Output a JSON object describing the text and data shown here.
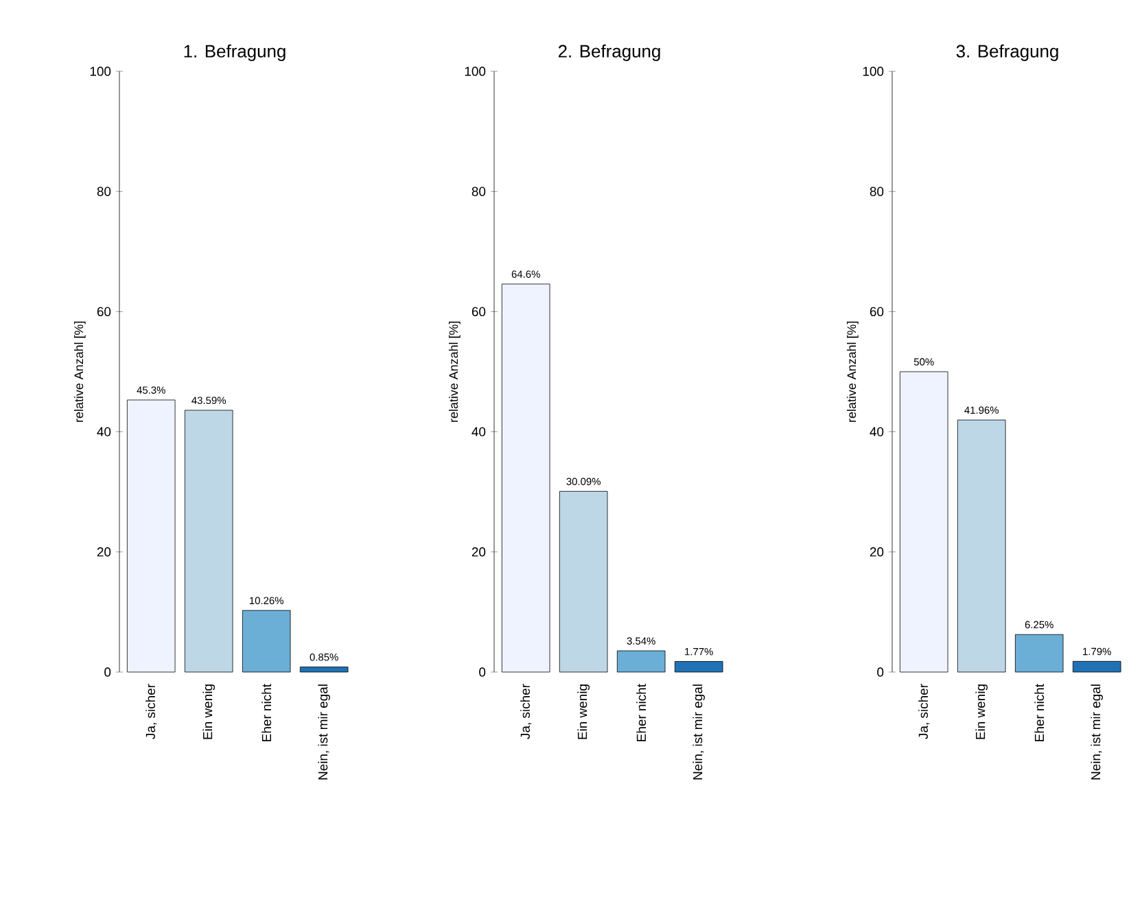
{
  "chart_data": [
    {
      "type": "bar",
      "title": "1. Befragung",
      "ylabel": "relative Anzahl [%]",
      "categories": [
        "Ja, sicher",
        "Ein wenig",
        "Eher nicht",
        "Nein, ist mir egal"
      ],
      "values": [
        45.3,
        43.59,
        10.26,
        0.85
      ],
      "colors": [
        "#eff3ff",
        "#bdd7e7",
        "#6baed6",
        "#2171b5"
      ],
      "value_labels": [
        "45.3%",
        "43.59%",
        "10.26%",
        "0.85%"
      ],
      "ylim": [
        0,
        100
      ],
      "yticks": [
        0,
        20,
        40,
        60,
        80,
        100
      ]
    },
    {
      "type": "bar",
      "title": "2. Befragung",
      "ylabel": "relative Anzahl [%]",
      "categories": [
        "Ja, sicher",
        "Ein wenig",
        "Eher nicht",
        "Nein, ist mir egal"
      ],
      "values": [
        64.6,
        30.09,
        3.54,
        1.77
      ],
      "colors": [
        "#eff3ff",
        "#bdd7e7",
        "#6baed6",
        "#2171b5"
      ],
      "value_labels": [
        "64.6%",
        "30.09%",
        "3.54%",
        "1.77%"
      ],
      "ylim": [
        0,
        100
      ],
      "yticks": [
        0,
        20,
        40,
        60,
        80,
        100
      ]
    },
    {
      "type": "bar",
      "title": "3. Befragung",
      "ylabel": "relative Anzahl [%]",
      "categories": [
        "Ja, sicher",
        "Ein wenig",
        "Eher nicht",
        "Nein, ist mir egal"
      ],
      "values": [
        50,
        41.96,
        6.25,
        1.79
      ],
      "colors": [
        "#eff3ff",
        "#bdd7e7",
        "#6baed6",
        "#2171b5"
      ],
      "value_labels": [
        "50%",
        "41.96%",
        "6.25%",
        "1.79%"
      ],
      "ylim": [
        0,
        100
      ],
      "yticks": [
        0,
        20,
        40,
        60,
        80,
        100
      ]
    }
  ]
}
